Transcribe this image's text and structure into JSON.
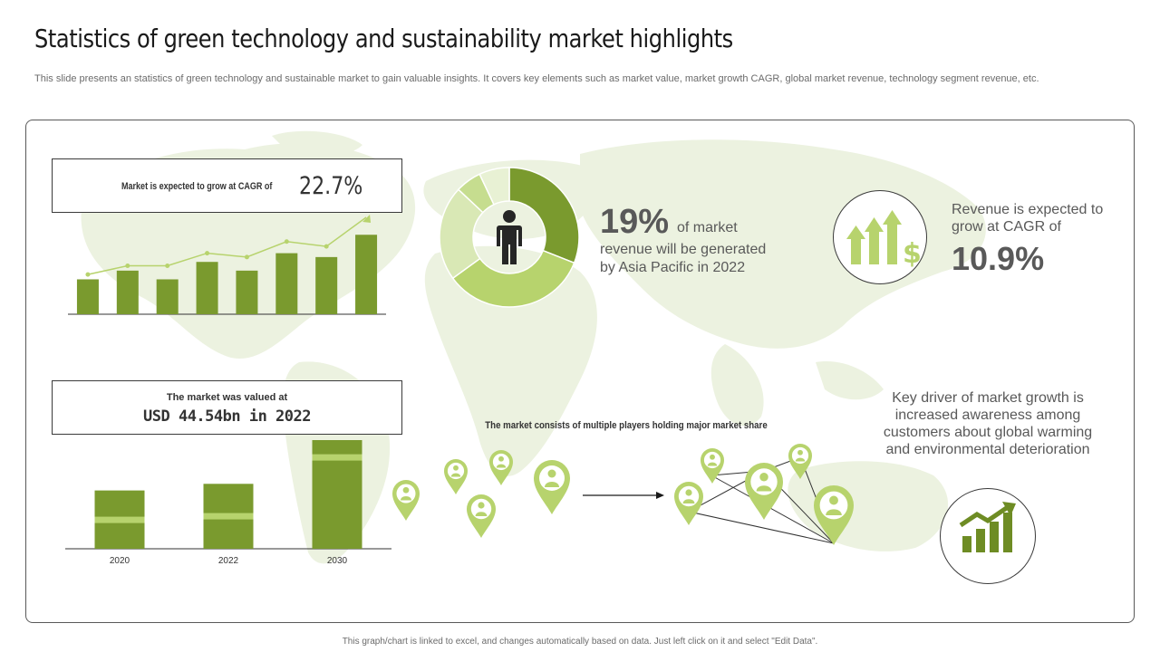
{
  "title": "Statistics of green technology and sustainability market highlights",
  "subtitle": "This slide presents an statistics of green technology and sustainable market to gain valuable insights. It covers key elements such as market value, market growth CAGR, global market revenue, technology segment revenue, etc.",
  "cagr_box": {
    "label": "Market is expected to grow at CAGR of",
    "value": "22.7%"
  },
  "valuation_box": {
    "label": "The market was valued at",
    "value": "USD 44.54bn in 2022"
  },
  "asia_stat": {
    "percent": "19%",
    "line1": "of market",
    "line2": "revenue will be generated by Asia Pacific in 2022"
  },
  "revenue_stat": {
    "text": "Revenue is expected to grow at CAGR of",
    "value": "10.9%"
  },
  "driver_text": "Key driver of market growth is increased awareness among customers about global warming and environmental deterioration",
  "players_text": "The market consists of multiple players holding major market share",
  "footer": "This graph/chart is linked to excel, and changes automatically based on data. Just left click on it and select \"Edit Data\".",
  "colors": {
    "dark_green": "#7a9a2e",
    "light_green": "#b7d36d",
    "pale_green": "#d9e8b5",
    "map": "#eaf1dd",
    "text": "#595959"
  },
  "icons": [
    "person-icon",
    "growth-arrows-dollar-icon",
    "growth-chart-icon",
    "location-pin-person-icon",
    "arrow-icon"
  ],
  "chart_data": [
    {
      "type": "bar",
      "title": "",
      "categories": [
        "",
        "",
        "",
        "",
        "",
        "",
        "",
        ""
      ],
      "series": [
        {
          "type": "bar",
          "values": [
            36,
            45,
            36,
            54,
            45,
            63,
            59,
            82
          ]
        },
        {
          "type": "line",
          "values": [
            41,
            50,
            50,
            63,
            59,
            75,
            70,
            100
          ]
        }
      ],
      "ylim": [
        0,
        100
      ],
      "grid": false
    },
    {
      "type": "bar",
      "categories": [
        "2020",
        "2022",
        "2030"
      ],
      "values": [
        44,
        49,
        82
      ],
      "ylim": [
        0,
        82
      ],
      "grid": false
    },
    {
      "type": "pie",
      "donut": true,
      "values": [
        31,
        34,
        22,
        6,
        7
      ],
      "colors": [
        "#7a9a2e",
        "#b7d36d",
        "#d9e8b5",
        "#c6dd8f",
        "#e8f1d4"
      ]
    }
  ]
}
